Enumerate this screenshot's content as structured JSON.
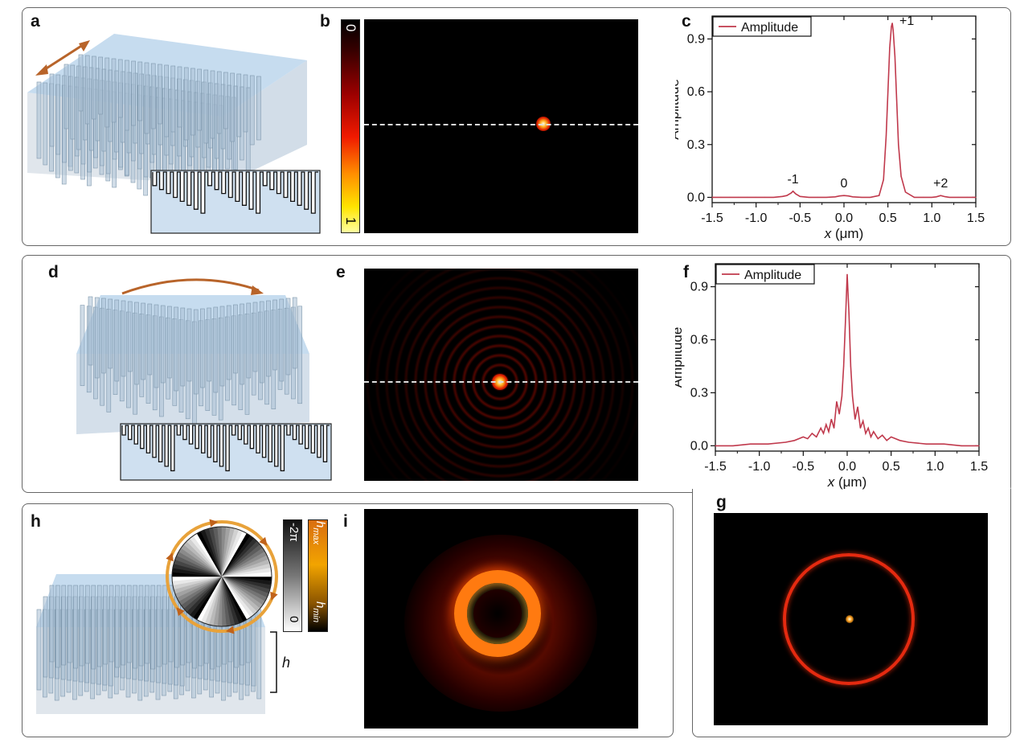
{
  "panels": {
    "a": "a",
    "b": "b",
    "c": "c",
    "d": "d",
    "e": "e",
    "f": "f",
    "g": "g",
    "h": "h",
    "i": "i"
  },
  "colorbar_b": {
    "top": "0",
    "bottom": "1"
  },
  "colorbar_h_phase": {
    "top": "-2π",
    "bottom": "0"
  },
  "colorbar_h_height": {
    "top": "h_max",
    "bottom": "h_min"
  },
  "height_label": "h",
  "colors": {
    "curve": "#c0394c",
    "arrow": "#b8642a",
    "metasurface": "#bcd6ec"
  },
  "chart_data": [
    {
      "id": "c",
      "type": "line",
      "xlabel": "x (μm)",
      "ylabel": "Amplitude",
      "xlim": [
        -1.5,
        1.5
      ],
      "ylim": [
        -0.03,
        1.03
      ],
      "xticks": [
        "-1.5",
        "-1.0",
        "-0.5",
        "0.0",
        "0.5",
        "1.0",
        "1.5"
      ],
      "yticks": [
        "0.0",
        "0.3",
        "0.6",
        "0.9"
      ],
      "legend": "Amplitude",
      "legend_position": "top-left",
      "annotations": [
        {
          "text": "-1",
          "x": -0.58,
          "y": 0.035
        },
        {
          "text": "0",
          "x": 0.0,
          "y": 0.01
        },
        {
          "text": "+1",
          "x": 0.55,
          "y": 0.99
        },
        {
          "text": "+2",
          "x": 1.1,
          "y": 0.01
        }
      ],
      "series": [
        {
          "name": "Amplitude",
          "x": [
            -1.5,
            -1.4,
            -1.3,
            -1.2,
            -1.1,
            -1.0,
            -0.9,
            -0.8,
            -0.7,
            -0.65,
            -0.6,
            -0.58,
            -0.55,
            -0.5,
            -0.4,
            -0.3,
            -0.2,
            -0.1,
            -0.05,
            0.0,
            0.05,
            0.1,
            0.2,
            0.3,
            0.4,
            0.45,
            0.48,
            0.5,
            0.52,
            0.54,
            0.55,
            0.56,
            0.58,
            0.6,
            0.62,
            0.65,
            0.7,
            0.8,
            0.9,
            1.0,
            1.05,
            1.1,
            1.15,
            1.2,
            1.3,
            1.4,
            1.5
          ],
          "y": [
            0.0,
            0.0,
            0.0,
            0.0,
            0.0,
            0.0,
            0.0,
            0.0,
            0.005,
            0.01,
            0.025,
            0.035,
            0.02,
            0.005,
            0.0,
            0.0,
            0.0,
            0.003,
            0.008,
            0.01,
            0.008,
            0.003,
            0.0,
            0.0,
            0.01,
            0.1,
            0.35,
            0.6,
            0.85,
            0.97,
            0.99,
            0.95,
            0.8,
            0.55,
            0.3,
            0.12,
            0.03,
            0.0,
            0.0,
            0.0,
            0.003,
            0.01,
            0.004,
            0.0,
            0.0,
            0.0,
            0.0
          ]
        }
      ]
    },
    {
      "id": "f",
      "type": "line",
      "xlabel": "x (μm)",
      "ylabel": "Amplitude",
      "xlim": [
        -1.5,
        1.5
      ],
      "ylim": [
        -0.03,
        1.03
      ],
      "xticks": [
        "-1.5",
        "-1.0",
        "-0.5",
        "0.0",
        "0.5",
        "1.0",
        "1.5"
      ],
      "yticks": [
        "0.0",
        "0.3",
        "0.6",
        "0.9"
      ],
      "legend": "Amplitude",
      "legend_position": "top-left",
      "series": [
        {
          "name": "Amplitude",
          "x": [
            -1.5,
            -1.3,
            -1.1,
            -0.9,
            -0.7,
            -0.6,
            -0.5,
            -0.45,
            -0.4,
            -0.35,
            -0.3,
            -0.27,
            -0.24,
            -0.21,
            -0.18,
            -0.15,
            -0.12,
            -0.09,
            -0.06,
            -0.04,
            -0.02,
            0.0,
            0.02,
            0.04,
            0.06,
            0.09,
            0.12,
            0.15,
            0.18,
            0.21,
            0.24,
            0.27,
            0.3,
            0.35,
            0.4,
            0.45,
            0.5,
            0.6,
            0.7,
            0.9,
            1.1,
            1.3,
            1.5
          ],
          "y": [
            0.0,
            0.0,
            0.01,
            0.01,
            0.02,
            0.03,
            0.05,
            0.04,
            0.07,
            0.05,
            0.1,
            0.07,
            0.12,
            0.08,
            0.15,
            0.1,
            0.25,
            0.18,
            0.28,
            0.45,
            0.7,
            0.97,
            0.75,
            0.45,
            0.28,
            0.15,
            0.22,
            0.1,
            0.14,
            0.07,
            0.1,
            0.05,
            0.08,
            0.04,
            0.06,
            0.03,
            0.05,
            0.03,
            0.02,
            0.01,
            0.01,
            0.0,
            0.0
          ]
        }
      ]
    }
  ]
}
